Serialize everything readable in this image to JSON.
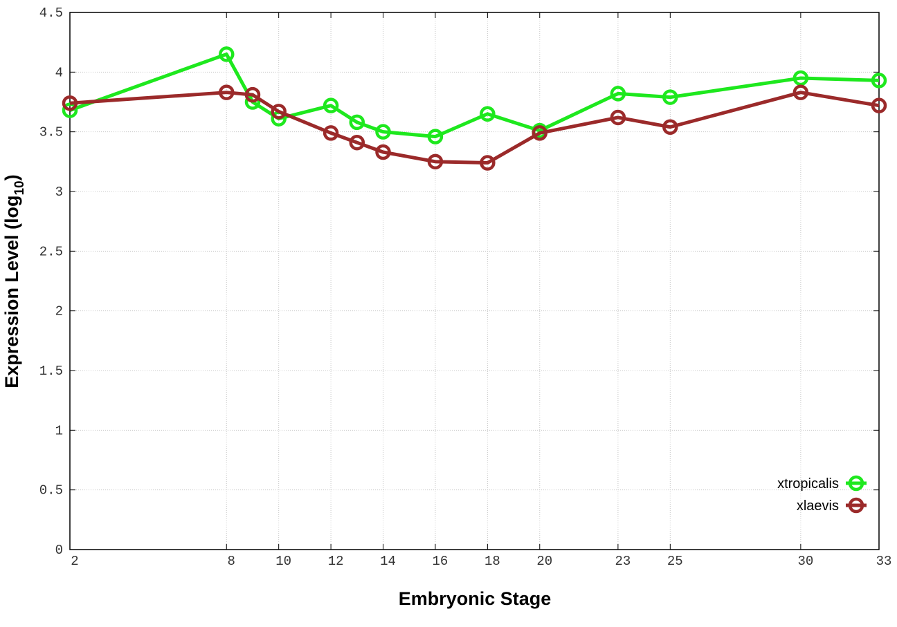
{
  "chart_data": {
    "type": "line",
    "x_label": "Embryonic Stage",
    "y_label": "Expression Level (log",
    "y_label_sub": "10",
    "y_label_end": ")",
    "x": [
      2,
      8,
      9,
      10,
      12,
      13,
      14,
      16,
      18,
      20,
      23,
      25,
      30,
      33
    ],
    "series": [
      {
        "name": "xtropicalis",
        "color": "#1ee81e",
        "values": [
          3.68,
          4.15,
          3.75,
          3.61,
          3.72,
          3.58,
          3.5,
          3.46,
          3.65,
          3.51,
          3.82,
          3.79,
          3.95,
          3.93
        ]
      },
      {
        "name": "xlaevis",
        "color": "#9b2a2a",
        "values": [
          3.74,
          3.83,
          3.81,
          3.67,
          3.49,
          3.41,
          3.33,
          3.25,
          3.24,
          3.49,
          3.62,
          3.54,
          3.83,
          3.72
        ]
      }
    ],
    "xlim": [
      2,
      33
    ],
    "xticks": [
      2,
      8,
      10,
      12,
      14,
      16,
      18,
      20,
      23,
      25,
      30,
      33
    ],
    "ylim": [
      0,
      4.5
    ],
    "yticks": [
      0,
      0.5,
      1,
      1.5,
      2,
      2.5,
      3,
      3.5,
      4,
      4.5
    ],
    "grid": true,
    "legend": "lower right"
  }
}
